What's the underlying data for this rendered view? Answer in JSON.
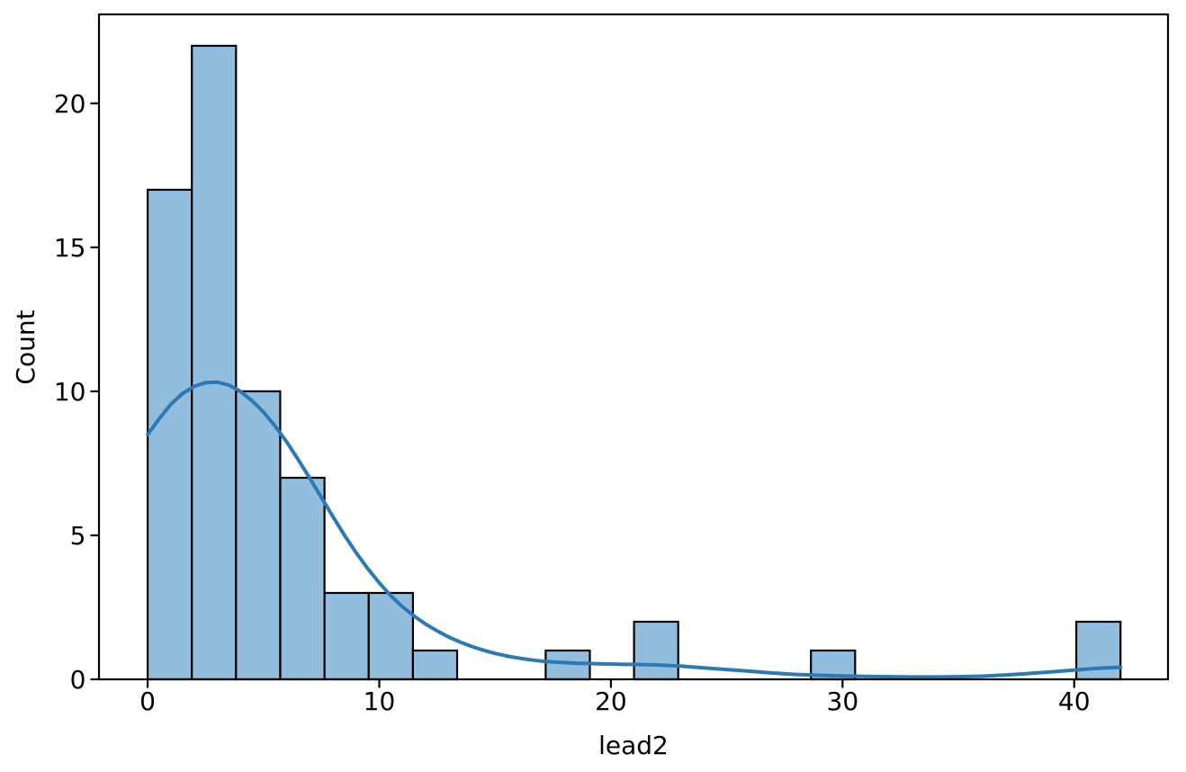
{
  "chart_data": {
    "type": "bar",
    "subtype": "histogram_with_kde",
    "title": "",
    "xlabel": "lead2",
    "ylabel": "Count",
    "x_ticks": [
      0,
      10,
      20,
      30,
      40
    ],
    "y_ticks": [
      0,
      5,
      10,
      15,
      20
    ],
    "xlim": [
      -2.1,
      44.05
    ],
    "ylim": [
      0,
      23.09
    ],
    "grid": false,
    "legend": null,
    "bins": {
      "start": 0,
      "width": 1.9091,
      "counts": [
        17,
        22,
        10,
        7,
        3,
        3,
        1,
        0,
        0,
        1,
        0,
        2,
        0,
        0,
        0,
        1,
        0,
        0,
        0,
        0,
        0,
        2
      ]
    },
    "kde_points": [
      [
        0,
        8.5
      ],
      [
        0.5,
        9.05
      ],
      [
        1,
        9.55
      ],
      [
        1.5,
        9.92
      ],
      [
        2,
        10.17
      ],
      [
        2.5,
        10.3
      ],
      [
        3,
        10.32
      ],
      [
        3.5,
        10.22
      ],
      [
        4,
        10.0
      ],
      [
        4.5,
        9.68
      ],
      [
        5,
        9.28
      ],
      [
        5.5,
        8.8
      ],
      [
        6,
        8.25
      ],
      [
        6.5,
        7.63
      ],
      [
        7,
        6.98
      ],
      [
        7.5,
        6.32
      ],
      [
        8,
        5.65
      ],
      [
        8.5,
        5.0
      ],
      [
        9,
        4.4
      ],
      [
        9.5,
        3.85
      ],
      [
        10,
        3.35
      ],
      [
        10.5,
        2.9
      ],
      [
        11,
        2.52
      ],
      [
        11.5,
        2.2
      ],
      [
        12,
        1.92
      ],
      [
        12.5,
        1.68
      ],
      [
        13,
        1.47
      ],
      [
        13.5,
        1.29
      ],
      [
        14,
        1.14
      ],
      [
        14.5,
        1.01
      ],
      [
        15,
        0.9
      ],
      [
        15.5,
        0.81
      ],
      [
        16,
        0.74
      ],
      [
        16.5,
        0.68
      ],
      [
        17,
        0.63
      ],
      [
        17.5,
        0.6
      ],
      [
        18,
        0.58
      ],
      [
        18.5,
        0.56
      ],
      [
        19,
        0.55
      ],
      [
        19.5,
        0.54
      ],
      [
        20,
        0.53
      ],
      [
        20.5,
        0.52
      ],
      [
        21,
        0.52
      ],
      [
        21.5,
        0.51
      ],
      [
        22,
        0.5
      ],
      [
        22.5,
        0.48
      ],
      [
        23,
        0.46
      ],
      [
        24,
        0.4
      ],
      [
        25,
        0.34
      ],
      [
        26,
        0.28
      ],
      [
        27,
        0.22
      ],
      [
        28,
        0.17
      ],
      [
        29,
        0.14
      ],
      [
        30,
        0.12
      ],
      [
        31,
        0.1
      ],
      [
        32,
        0.09
      ],
      [
        33,
        0.08
      ],
      [
        34,
        0.08
      ],
      [
        35,
        0.09
      ],
      [
        36,
        0.11
      ],
      [
        37,
        0.15
      ],
      [
        38,
        0.2
      ],
      [
        39,
        0.26
      ],
      [
        40,
        0.32
      ],
      [
        41,
        0.38
      ],
      [
        42,
        0.42
      ]
    ],
    "colors": {
      "bar_fill": "#92bddd",
      "bar_edge": "#000000",
      "kde_line": "#2b79b5",
      "axis": "#000000",
      "text": "#000000",
      "background": "#ffffff"
    }
  }
}
